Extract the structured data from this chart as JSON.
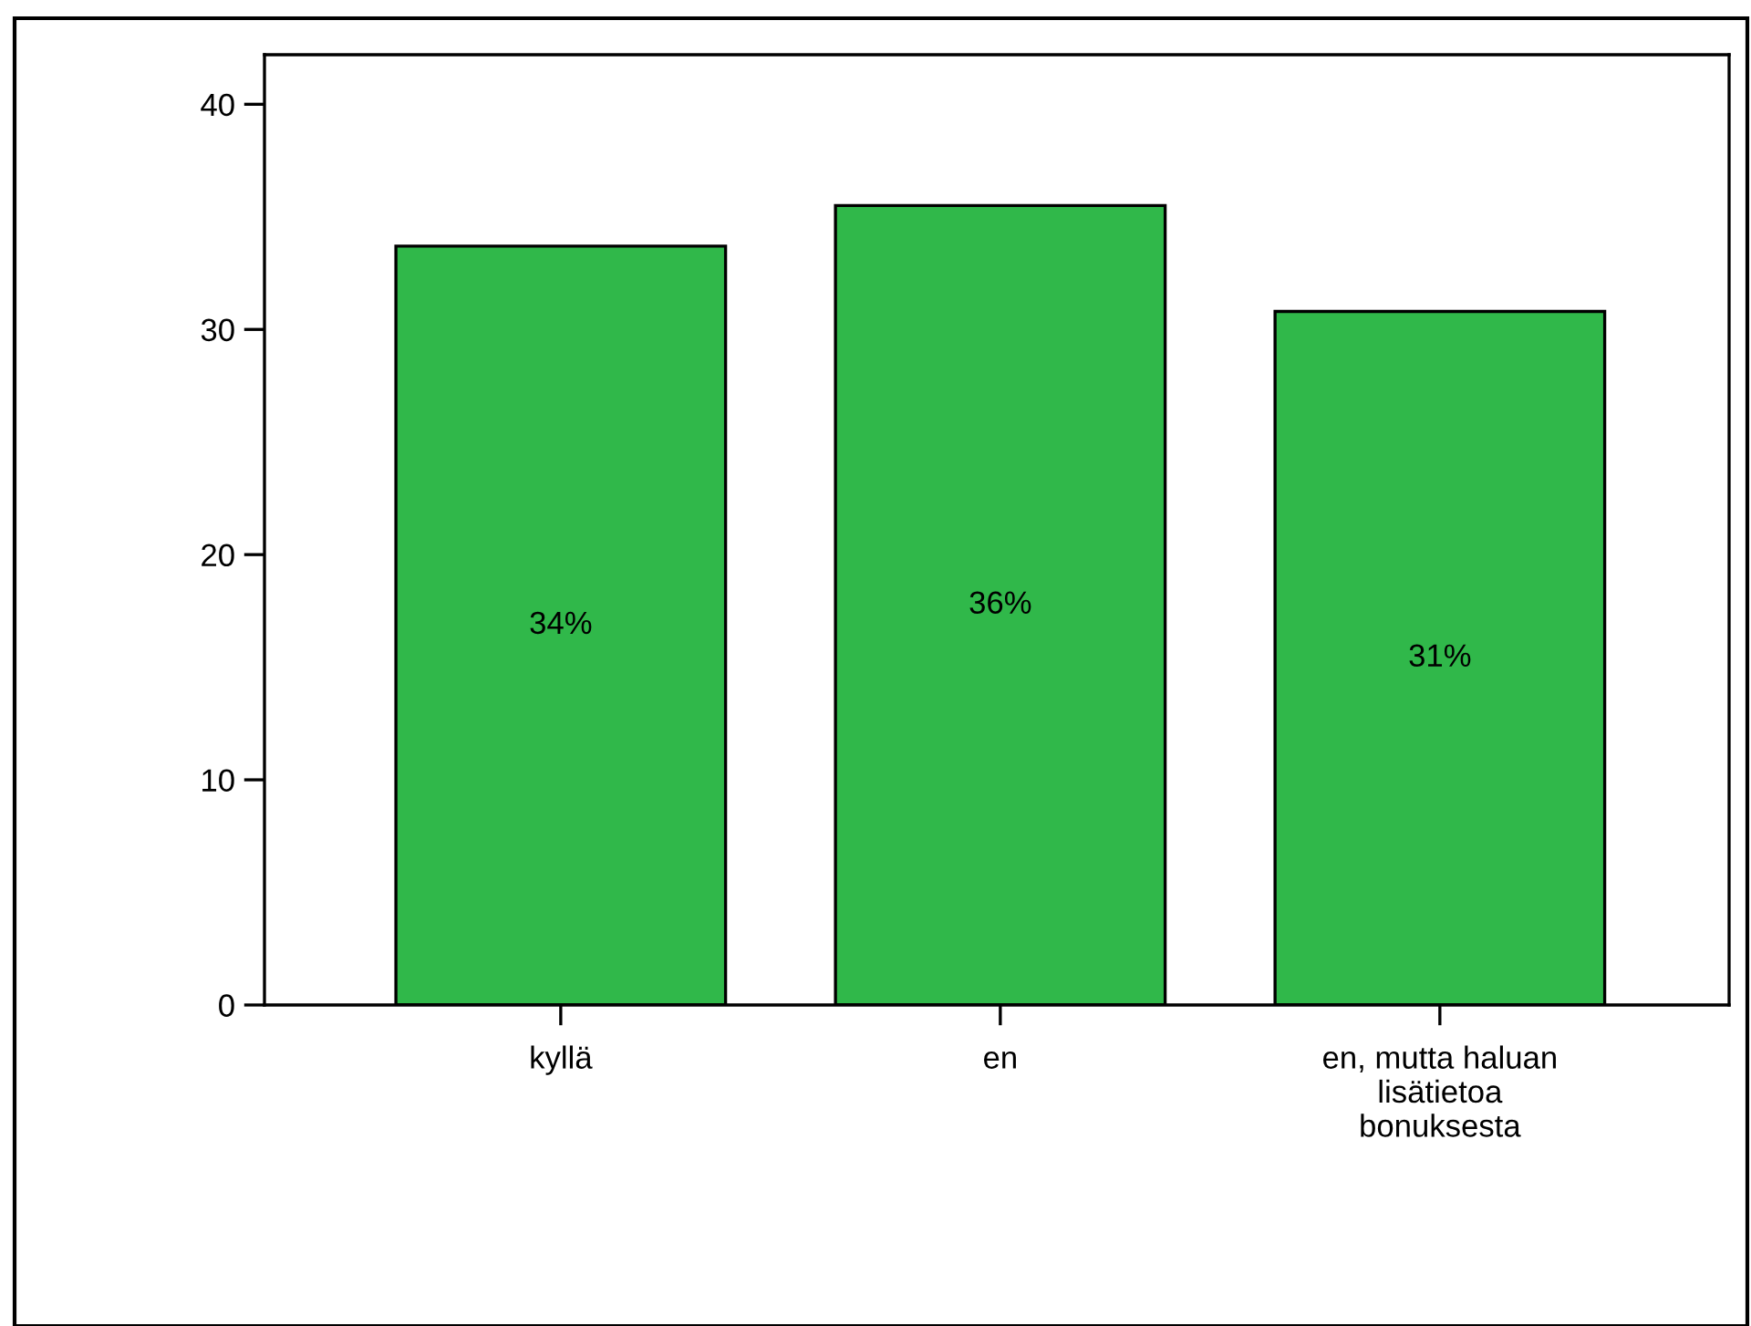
{
  "chart_data": {
    "type": "bar",
    "categories": [
      "kyllä",
      "en",
      "en, mutta haluan\nlisätietoa\nbonuksesta"
    ],
    "values": [
      33.7,
      35.5,
      30.8
    ],
    "value_labels": [
      "34%",
      "36%",
      "31%"
    ],
    "color": "#30b84a",
    "ylim": [
      0,
      42.2
    ],
    "yticks": [
      0,
      10,
      20,
      30,
      40
    ],
    "grid": false,
    "legend": false
  }
}
